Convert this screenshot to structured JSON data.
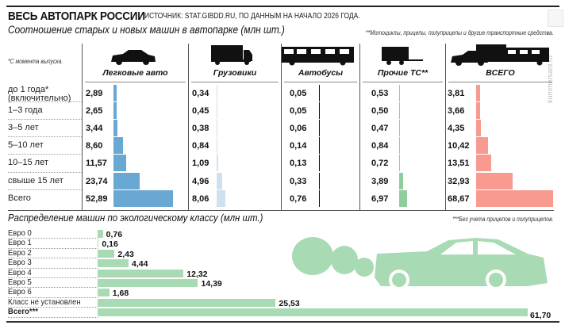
{
  "header": {
    "title": "ВЕСЬ АВТОПАРК РОССИИ",
    "source": "ИСТОЧНИК: STAT.GIBDD.RU, ПО ДАННЫМ НА НАЧАЛО 2026 ГОДА.",
    "subtitle": "Соотношение старых и новых машин в автопарке (млн шт.)",
    "note_other": "**Мотоциклы, прицепы, полуприцепы и другие транспортные средства.",
    "note_age": "*С момента выпуска.",
    "watermark": "kommersant.ru"
  },
  "chart_data": [
    {
      "type": "bar",
      "title": "Соотношение старых и новых машин в автопарке (млн шт.)",
      "categories": [
        "до 1 года* (включительно)",
        "1–3 года",
        "3–5 лет",
        "5–10 лет",
        "10–15 лет",
        "свыше 15 лет",
        "Всего"
      ],
      "series": [
        {
          "name": "Легковые авто",
          "icon": "car-icon",
          "color": "#6aa8d4",
          "values": [
            2.89,
            2.65,
            3.44,
            8.6,
            11.57,
            23.74,
            52.89
          ]
        },
        {
          "name": "Грузовики",
          "icon": "truck-icon",
          "color": "#cfe0ef",
          "values": [
            0.34,
            0.45,
            0.38,
            0.84,
            1.09,
            4.96,
            8.06
          ]
        },
        {
          "name": "Автобусы",
          "icon": "bus-icon",
          "color": "#111111",
          "values": [
            0.05,
            0.05,
            0.06,
            0.14,
            0.13,
            0.33,
            0.76
          ]
        },
        {
          "name": "Прочие ТС**",
          "icon": "trailer-icon",
          "color": "#8fcc9e",
          "values": [
            0.53,
            0.5,
            0.47,
            0.84,
            0.72,
            3.89,
            6.97
          ]
        },
        {
          "name": "ВСЕГО",
          "icon": "all-vehicles-icon",
          "color": "#f89a90",
          "values": [
            3.81,
            3.66,
            4.35,
            10.42,
            13.51,
            32.93,
            68.67
          ]
        }
      ]
    },
    {
      "type": "bar",
      "orientation": "horizontal",
      "title": "Распределение машин по экологическому классу (млн шт.)",
      "note": "***Без учета прицепов и полуприцепов.",
      "color": "#a8dbb4",
      "categories": [
        "Евро 0",
        "Евро 1",
        "Евро 2",
        "Евро 3",
        "Евро 4",
        "Евро 5",
        "Евро 6",
        "Класс не установлен",
        "Всего***"
      ],
      "values": [
        0.76,
        0.16,
        2.43,
        4.44,
        12.32,
        14.39,
        1.68,
        25.53,
        61.7
      ]
    }
  ]
}
